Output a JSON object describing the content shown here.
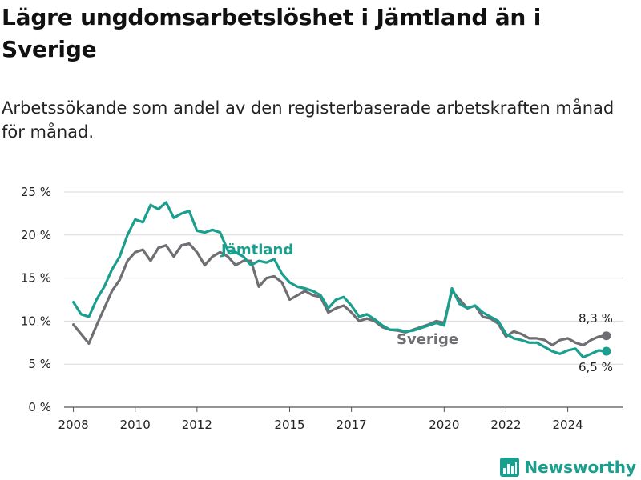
{
  "title": "Lägre ungdomsarbetslöshet i Jämtland än i Sverige",
  "subtitle": "Arbetssökande som andel av den registerbaserade arbetskraften månad för månad.",
  "brand": {
    "name": "Newsworthy",
    "icon": "bar-chart-icon",
    "color": "#1a9e8d"
  },
  "chart_data": {
    "type": "line",
    "x_unit": "year",
    "xlim": [
      2007.7,
      2025.8
    ],
    "ylim": [
      0,
      25
    ],
    "xticks": [
      2008,
      2010,
      2012,
      2015,
      2017,
      2020,
      2022,
      2024
    ],
    "xtick_labels": [
      "2008",
      "2010",
      "2012",
      "2015",
      "2017",
      "2020",
      "2022",
      "2024"
    ],
    "yticks": [
      0,
      5,
      10,
      15,
      20,
      25
    ],
    "ytick_labels": [
      "0 %",
      "5 %",
      "10 %",
      "15 %",
      "20 %",
      "25 %"
    ],
    "grid": true,
    "series": [
      {
        "name": "Jämtland",
        "color": "#1a9e8d",
        "end_label": "6,5 %",
        "x": [
          2008,
          2008.25,
          2008.5,
          2008.75,
          2009,
          2009.25,
          2009.5,
          2009.75,
          2010,
          2010.25,
          2010.5,
          2010.75,
          2011,
          2011.25,
          2011.5,
          2011.75,
          2012,
          2012.25,
          2012.5,
          2012.75,
          2013,
          2013.25,
          2013.5,
          2013.75,
          2014,
          2014.25,
          2014.5,
          2014.75,
          2015,
          2015.25,
          2015.5,
          2015.75,
          2016,
          2016.25,
          2016.5,
          2016.75,
          2017,
          2017.25,
          2017.5,
          2017.75,
          2018,
          2018.25,
          2018.5,
          2018.75,
          2019,
          2019.25,
          2019.5,
          2019.75,
          2020,
          2020.25,
          2020.5,
          2020.75,
          2021,
          2021.25,
          2021.5,
          2021.75,
          2022,
          2022.25,
          2022.5,
          2022.75,
          2023,
          2023.25,
          2023.5,
          2023.75,
          2024,
          2024.25,
          2024.5,
          2024.75,
          2025,
          2025.25
        ],
        "values": [
          12.2,
          10.8,
          10.5,
          12.5,
          14.0,
          16.0,
          17.5,
          20.0,
          21.8,
          21.5,
          23.5,
          23.0,
          23.8,
          22.0,
          22.5,
          22.8,
          20.5,
          20.3,
          20.6,
          20.3,
          18.2,
          18.0,
          17.5,
          16.5,
          17.0,
          16.8,
          17.2,
          15.5,
          14.5,
          14.0,
          13.8,
          13.5,
          13.0,
          11.5,
          12.5,
          12.8,
          11.8,
          10.5,
          10.8,
          10.2,
          9.5,
          9.0,
          9.0,
          8.8,
          8.9,
          9.2,
          9.5,
          9.8,
          9.5,
          13.8,
          12.0,
          11.5,
          11.8,
          11.0,
          10.5,
          10.0,
          8.5,
          8.0,
          7.8,
          7.5,
          7.5,
          7.0,
          6.5,
          6.2,
          6.6,
          6.8,
          5.8,
          6.2,
          6.6,
          6.5
        ]
      },
      {
        "name": "Sverige",
        "color": "#6e6e73",
        "end_label": "8,3 %",
        "x": [
          2008,
          2008.25,
          2008.5,
          2008.75,
          2009,
          2009.25,
          2009.5,
          2009.75,
          2010,
          2010.25,
          2010.5,
          2010.75,
          2011,
          2011.25,
          2011.5,
          2011.75,
          2012,
          2012.25,
          2012.5,
          2012.75,
          2013,
          2013.25,
          2013.5,
          2013.75,
          2014,
          2014.25,
          2014.5,
          2014.75,
          2015,
          2015.25,
          2015.5,
          2015.75,
          2016,
          2016.25,
          2016.5,
          2016.75,
          2017,
          2017.25,
          2017.5,
          2017.75,
          2018,
          2018.25,
          2018.5,
          2018.75,
          2019,
          2019.25,
          2019.5,
          2019.75,
          2020,
          2020.25,
          2020.5,
          2020.75,
          2021,
          2021.25,
          2021.5,
          2021.75,
          2022,
          2022.25,
          2022.5,
          2022.75,
          2023,
          2023.25,
          2023.5,
          2023.75,
          2024,
          2024.25,
          2024.5,
          2024.75,
          2025,
          2025.25
        ],
        "values": [
          9.6,
          8.5,
          7.4,
          9.5,
          11.5,
          13.5,
          14.8,
          17.0,
          18.0,
          18.3,
          17.0,
          18.5,
          18.8,
          17.5,
          18.8,
          19.0,
          18.0,
          16.5,
          17.5,
          18.0,
          17.5,
          16.5,
          17.0,
          17.0,
          14.0,
          15.0,
          15.2,
          14.5,
          12.5,
          13.0,
          13.5,
          13.0,
          12.8,
          11.0,
          11.5,
          11.8,
          11.0,
          10.0,
          10.3,
          10.0,
          9.3,
          9.0,
          8.9,
          8.7,
          9.0,
          9.3,
          9.6,
          10.0,
          9.8,
          13.5,
          12.5,
          11.5,
          11.8,
          10.5,
          10.3,
          9.7,
          8.2,
          8.8,
          8.5,
          8.0,
          8.0,
          7.8,
          7.2,
          7.8,
          8.0,
          7.5,
          7.2,
          7.8,
          8.2,
          8.3
        ]
      }
    ]
  }
}
